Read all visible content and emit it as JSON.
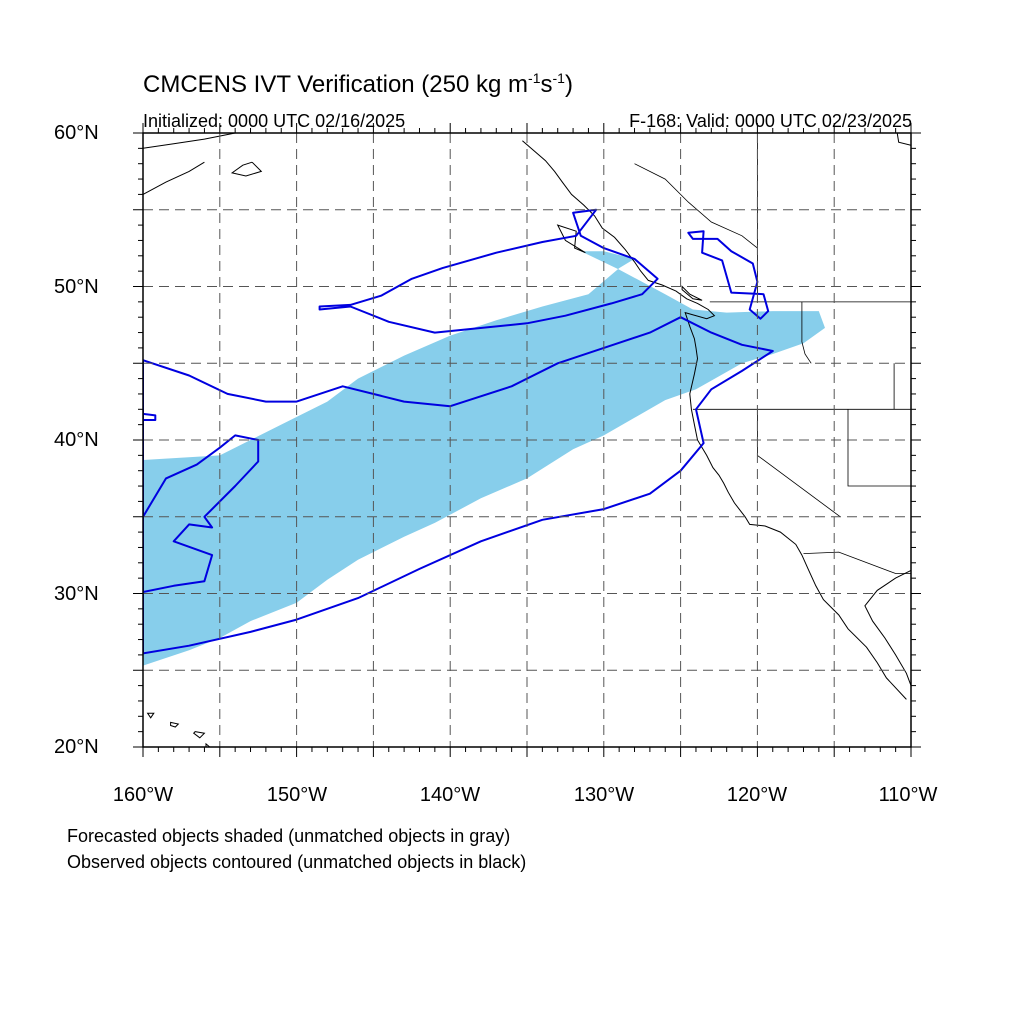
{
  "title": {
    "prefix": "CMCENS IVT Verification (250 kg m",
    "sup1": "-1",
    "mid": "s",
    "sup2": "-1",
    "suffix": ")"
  },
  "subtitle_left": "Initialized: 0000 UTC 02/16/2025",
  "subtitle_right": "F-168: Valid: 0000 UTC 02/23/2025",
  "lat_labels": [
    "60°N",
    "50°N",
    "40°N",
    "30°N",
    "20°N"
  ],
  "lon_labels": [
    "160°W",
    "150°W",
    "140°W",
    "130°W",
    "120°W",
    "110°W"
  ],
  "notes": [
    "Forecasted objects shaded (unmatched objects in gray)",
    "Observed objects contoured (unmatched objects in black)"
  ],
  "map": {
    "extent": {
      "lon": [
        -160,
        -110
      ],
      "lat": [
        20,
        60
      ]
    },
    "colors": {
      "forecast_fill": "#87ceeb",
      "observed_contour": "#0000e0",
      "coast": "#000000",
      "grid": "#555555"
    },
    "forecast_object": [
      [
        -160,
        38.7
      ],
      [
        -155,
        39
      ],
      [
        -151,
        41
      ],
      [
        -148,
        42.5
      ],
      [
        -146,
        44
      ],
      [
        -143,
        45.5
      ],
      [
        -140,
        46.8
      ],
      [
        -137,
        47.8
      ],
      [
        -134,
        48.7
      ],
      [
        -131,
        49.5
      ],
      [
        -129,
        51.2
      ],
      [
        -128,
        51.8
      ],
      [
        -130,
        52.3
      ],
      [
        -131.5,
        52.3
      ],
      [
        -129,
        51.1
      ],
      [
        -126,
        49.5
      ],
      [
        -124.2,
        48.5
      ],
      [
        -122,
        48.3
      ],
      [
        -119,
        48.4
      ],
      [
        -116,
        48.4
      ],
      [
        -115.6,
        47.3
      ],
      [
        -117,
        46.3
      ],
      [
        -119,
        45.6
      ],
      [
        -121,
        45
      ],
      [
        -124,
        43.3
      ],
      [
        -126,
        42.6
      ],
      [
        -130,
        40.3
      ],
      [
        -132,
        39.4
      ],
      [
        -135,
        37.5
      ],
      [
        -138,
        36.2
      ],
      [
        -141,
        34.6
      ],
      [
        -143,
        33.7
      ],
      [
        -146,
        32.2
      ],
      [
        -148,
        30.9
      ],
      [
        -150,
        29.4
      ],
      [
        -153,
        28.2
      ],
      [
        -155,
        27.1
      ],
      [
        -157,
        26.3
      ],
      [
        -160,
        25.3
      ]
    ],
    "observed_objects": [
      [
        [
          -160,
          35
        ],
        [
          -158.5,
          37.5
        ],
        [
          -156.5,
          38.4
        ],
        [
          -155,
          39.5
        ],
        [
          -154,
          40.3
        ],
        [
          -152.5,
          40
        ],
        [
          -152.5,
          38.6
        ],
        [
          -154,
          37
        ],
        [
          -156,
          35
        ],
        [
          -155.5,
          34.3
        ],
        [
          -157,
          34.5
        ],
        [
          -158,
          33.4
        ],
        [
          -155.5,
          32.5
        ],
        [
          -156,
          30.8
        ],
        [
          -158,
          30.5
        ],
        [
          -160,
          30.1
        ]
      ],
      [
        [
          -160,
          26.1
        ],
        [
          -157,
          26.6
        ],
        [
          -153,
          27.5
        ],
        [
          -150,
          28.3
        ],
        [
          -146,
          29.7
        ],
        [
          -142,
          31.6
        ],
        [
          -138,
          33.4
        ],
        [
          -134,
          34.8
        ],
        [
          -130,
          35.5
        ],
        [
          -127,
          36.5
        ],
        [
          -125,
          38
        ],
        [
          -123.5,
          39.8
        ],
        [
          -124,
          42
        ],
        [
          -123,
          43.3
        ],
        [
          -121,
          44.5
        ],
        [
          -119,
          45.8
        ],
        [
          -121,
          46.2
        ],
        [
          -123,
          47
        ],
        [
          -125,
          48
        ],
        [
          -127,
          47
        ],
        [
          -130,
          46
        ],
        [
          -133,
          45
        ],
        [
          -136,
          43.5
        ],
        [
          -140,
          42.2
        ],
        [
          -143,
          42.5
        ],
        [
          -147,
          43.5
        ],
        [
          -150,
          42.5
        ],
        [
          -152,
          42.5
        ],
        [
          -154.5,
          43
        ],
        [
          -157,
          44.2
        ],
        [
          -160,
          45.2
        ]
      ],
      [
        [
          -148.5,
          48.5
        ],
        [
          -146.5,
          48.7
        ],
        [
          -144,
          47.7
        ],
        [
          -141,
          47
        ],
        [
          -139,
          47.2
        ],
        [
          -135,
          47.6
        ],
        [
          -132.5,
          48.1
        ],
        [
          -129.5,
          48.9
        ],
        [
          -127.5,
          49.5
        ],
        [
          -126.5,
          50.5
        ],
        [
          -128,
          51.8
        ],
        [
          -130,
          52.5
        ],
        [
          -131.5,
          53.3
        ],
        [
          -132,
          54.8
        ],
        [
          -130.5,
          55
        ],
        [
          -131.8,
          53.3
        ],
        [
          -134,
          52.9
        ],
        [
          -137,
          52.2
        ],
        [
          -140.5,
          51.2
        ],
        [
          -142.5,
          50.5
        ],
        [
          -144.5,
          49.4
        ],
        [
          -146.5,
          48.8
        ],
        [
          -148.5,
          48.7
        ]
      ],
      [
        [
          -124.5,
          53.5
        ],
        [
          -123.5,
          53.6
        ],
        [
          -123.6,
          52.2
        ],
        [
          -122.3,
          51.7
        ],
        [
          -121.7,
          49.6
        ],
        [
          -119.6,
          49.5
        ],
        [
          -119.3,
          48.4
        ],
        [
          -119.8,
          47.9
        ],
        [
          -120.5,
          48.5
        ],
        [
          -120,
          50.3
        ],
        [
          -120.3,
          51.5
        ],
        [
          -121.7,
          52.3
        ],
        [
          -122.6,
          53.1
        ],
        [
          -124.2,
          53.1
        ]
      ],
      [
        [
          -160,
          41.7
        ],
        [
          -159.2,
          41.6
        ],
        [
          -159.2,
          41.3
        ],
        [
          -160,
          41.3
        ]
      ]
    ],
    "coastlines": [
      [
        [
          -135.3,
          59.5
        ],
        [
          -134.5,
          58.8
        ],
        [
          -133.8,
          58.2
        ],
        [
          -133.2,
          57.5
        ],
        [
          -132.7,
          56.8
        ],
        [
          -132.1,
          56
        ],
        [
          -131.3,
          55.3
        ],
        [
          -130.6,
          54.6
        ],
        [
          -130.1,
          53.8
        ],
        [
          -129.3,
          53.2
        ],
        [
          -128.6,
          52.4
        ],
        [
          -128,
          51.6
        ],
        [
          -127.6,
          51
        ],
        [
          -127.1,
          50.4
        ],
        [
          -126.2,
          50.1
        ],
        [
          -125.3,
          49.7
        ],
        [
          -124.6,
          49.2
        ],
        [
          -123.9,
          48.9
        ],
        [
          -123.2,
          48.5
        ],
        [
          -122.8,
          48.1
        ],
        [
          -123.3,
          47.9
        ],
        [
          -124.7,
          48.3
        ],
        [
          -124.4,
          47.4
        ],
        [
          -124.1,
          46.6
        ],
        [
          -124,
          46
        ],
        [
          -123.9,
          45.3
        ],
        [
          -124.1,
          44.3
        ],
        [
          -124.4,
          43
        ],
        [
          -124.3,
          42
        ],
        [
          -124.1,
          41
        ],
        [
          -123.9,
          40
        ],
        [
          -123.3,
          39
        ],
        [
          -122.9,
          38.2
        ],
        [
          -122.5,
          37.7
        ],
        [
          -122.2,
          37.2
        ],
        [
          -121.9,
          36.6
        ],
        [
          -121.5,
          35.9
        ],
        [
          -120.8,
          35
        ],
        [
          -120.5,
          34.5
        ],
        [
          -119.5,
          34.4
        ],
        [
          -118.5,
          34
        ],
        [
          -117.5,
          33.2
        ],
        [
          -117.1,
          32.5
        ],
        [
          -116.7,
          31.6
        ],
        [
          -116.2,
          30.5
        ],
        [
          -115.7,
          29.6
        ],
        [
          -114.7,
          28.6
        ],
        [
          -114.1,
          27.7
        ],
        [
          -112.9,
          26.5
        ],
        [
          -112.2,
          25.5
        ],
        [
          -111.6,
          24.5
        ],
        [
          -110.3,
          23.1
        ]
      ],
      [
        [
          -110,
          31.5
        ],
        [
          -111,
          31
        ],
        [
          -112.2,
          30.2
        ],
        [
          -113,
          29.2
        ],
        [
          -112.5,
          28.2
        ],
        [
          -111.7,
          27.1
        ],
        [
          -111,
          26
        ],
        [
          -110.3,
          24.8
        ],
        [
          -110,
          24
        ]
      ],
      [
        [
          -160,
          59
        ],
        [
          -158,
          59.3
        ],
        [
          -156,
          59.6
        ],
        [
          -154,
          60
        ]
      ],
      [
        [
          -160,
          56
        ],
        [
          -158.5,
          56.8
        ],
        [
          -157,
          57.5
        ],
        [
          -156,
          58.1
        ]
      ],
      [
        [
          -152.9,
          58.1
        ],
        [
          -152.3,
          57.5
        ],
        [
          -153.3,
          57.2
        ],
        [
          -154.2,
          57.4
        ],
        [
          -153.5,
          57.9
        ],
        [
          -152.9,
          58.1
        ]
      ],
      [
        [
          -110.9,
          60
        ],
        [
          -110.8,
          59.4
        ],
        [
          -110,
          59.2
        ]
      ]
    ],
    "borders": [
      [
        [
          -123.1,
          49
        ],
        [
          -110,
          49
        ]
      ],
      [
        [
          -124.2,
          42
        ],
        [
          -110,
          42
        ]
      ],
      [
        [
          -120,
          42
        ],
        [
          -120,
          39
        ],
        [
          -114.6,
          35
        ]
      ],
      [
        [
          -117.1,
          49
        ],
        [
          -117.1,
          46.4
        ],
        [
          -116.9,
          45.6
        ],
        [
          -116.5,
          45
        ]
      ],
      [
        [
          -117,
          32.6
        ],
        [
          -114.7,
          32.7
        ],
        [
          -111,
          31.3
        ],
        [
          -110,
          31.3
        ]
      ],
      [
        [
          -114.1,
          42
        ],
        [
          -114.1,
          37
        ],
        [
          -110,
          37
        ]
      ],
      [
        [
          -111.1,
          45
        ],
        [
          -111.1,
          42
        ]
      ],
      [
        [
          -120,
          60
        ],
        [
          -120,
          49
        ]
      ],
      [
        [
          -128,
          58
        ],
        [
          -126,
          57
        ],
        [
          -124.5,
          55.5
        ],
        [
          -123,
          54.2
        ],
        [
          -121,
          53.3
        ],
        [
          -120,
          52.5
        ]
      ]
    ],
    "islands": [
      [
        [
          -155.9,
          20.2
        ],
        [
          -155.3,
          19.7
        ],
        [
          -155.6,
          19.4
        ],
        [
          -155.9,
          19.8
        ]
      ],
      [
        [
          -156.6,
          21
        ],
        [
          -156,
          20.9
        ],
        [
          -156.3,
          20.6
        ],
        [
          -156.7,
          20.9
        ]
      ],
      [
        [
          -158.2,
          21.6
        ],
        [
          -157.7,
          21.5
        ],
        [
          -157.9,
          21.3
        ],
        [
          -158.2,
          21.4
        ]
      ],
      [
        [
          -159.7,
          22.2
        ],
        [
          -159.3,
          22.2
        ],
        [
          -159.5,
          21.9
        ]
      ],
      [
        [
          -133,
          54
        ],
        [
          -131.8,
          53.6
        ],
        [
          -131.9,
          52.5
        ],
        [
          -131.2,
          52.2
        ],
        [
          -132.5,
          53
        ],
        [
          -133,
          54
        ]
      ],
      [
        [
          -124.9,
          50
        ],
        [
          -124.4,
          49.5
        ],
        [
          -123.6,
          49.1
        ],
        [
          -124.2,
          49.2
        ],
        [
          -124.9,
          49.8
        ]
      ]
    ]
  }
}
